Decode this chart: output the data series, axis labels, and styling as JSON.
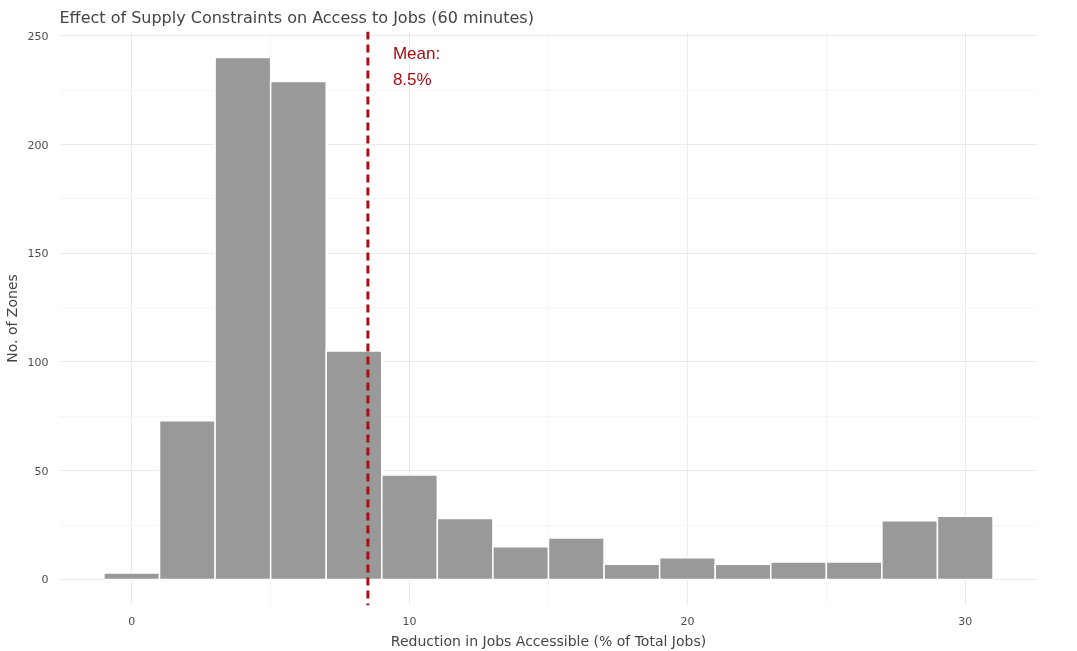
{
  "chart_data": {
    "type": "histogram",
    "title": "Effect of Supply Constraints on Access to Jobs (60 minutes)",
    "xlabel": "Reduction in Jobs Accessible (% of Total Jobs)",
    "ylabel": "No. of Zones",
    "bins": [
      -1,
      1,
      3,
      5,
      7,
      9,
      11,
      13,
      15,
      17,
      19,
      21,
      23,
      25,
      27,
      29,
      31
    ],
    "values": [
      3,
      73,
      240,
      229,
      105,
      48,
      28,
      15,
      19,
      7,
      10,
      7,
      8,
      8,
      27,
      29
    ],
    "color": "#999999",
    "xlim": [
      -2.6,
      32.6
    ],
    "ylim": [
      -12,
      252
    ],
    "xticks": [
      0,
      10,
      20,
      30
    ],
    "yticks": [
      0,
      50,
      100,
      150,
      200,
      250
    ],
    "grid": true,
    "ref_lines": [
      {
        "axis": "x",
        "value": 8.5,
        "label": "Mean:\n8.5%",
        "color": "#a50f15",
        "line_style": "dashed"
      }
    ]
  }
}
